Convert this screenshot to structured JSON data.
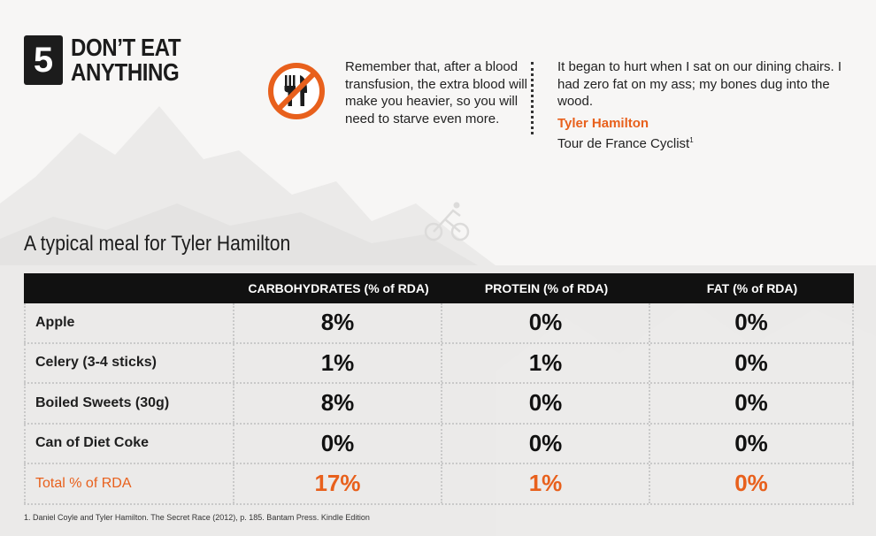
{
  "header": {
    "number": "5",
    "title_line1": "DON’T EAT",
    "title_line2": "ANYTHING"
  },
  "quote_left": "Remember that, after a blood transfusion, the extra blood will make you heavier, so you will need to starve even more.",
  "quote_right": {
    "text": "It began to hurt when I sat on our dining chairs. I had zero fat on my ass; my bones dug into the wood.",
    "author": "Tyler Hamilton",
    "role": "Tour de France Cyclist",
    "footnote_mark": "1"
  },
  "meal_title": "A typical meal for Tyler Hamilton",
  "table": {
    "headers": [
      "",
      "CARBOHYDRATES (% of RDA)",
      "PROTEIN (% of RDA)",
      "FAT (% of RDA)"
    ],
    "rows": [
      {
        "item": "Apple",
        "carbs": "8%",
        "protein": "0%",
        "fat": "0%"
      },
      {
        "item": "Celery (3-4 sticks)",
        "carbs": "1%",
        "protein": "1%",
        "fat": "0%"
      },
      {
        "item": "Boiled Sweets (30g)",
        "carbs": "8%",
        "protein": "0%",
        "fat": "0%"
      },
      {
        "item": "Can of Diet Coke",
        "carbs": "0%",
        "protein": "0%",
        "fat": "0%"
      }
    ],
    "total": {
      "item": "Total % of RDA",
      "carbs": "17%",
      "protein": "1%",
      "fat": "0%"
    }
  },
  "footnote": "1. Daniel Coyle and Tyler Hamilton. The Secret Race (2012), p. 185. Bantam Press. Kindle Edition",
  "colors": {
    "accent": "#e8601c",
    "dark": "#111111",
    "background": "#f7f6f5"
  },
  "icons": {
    "no_food": "no-food-icon"
  }
}
